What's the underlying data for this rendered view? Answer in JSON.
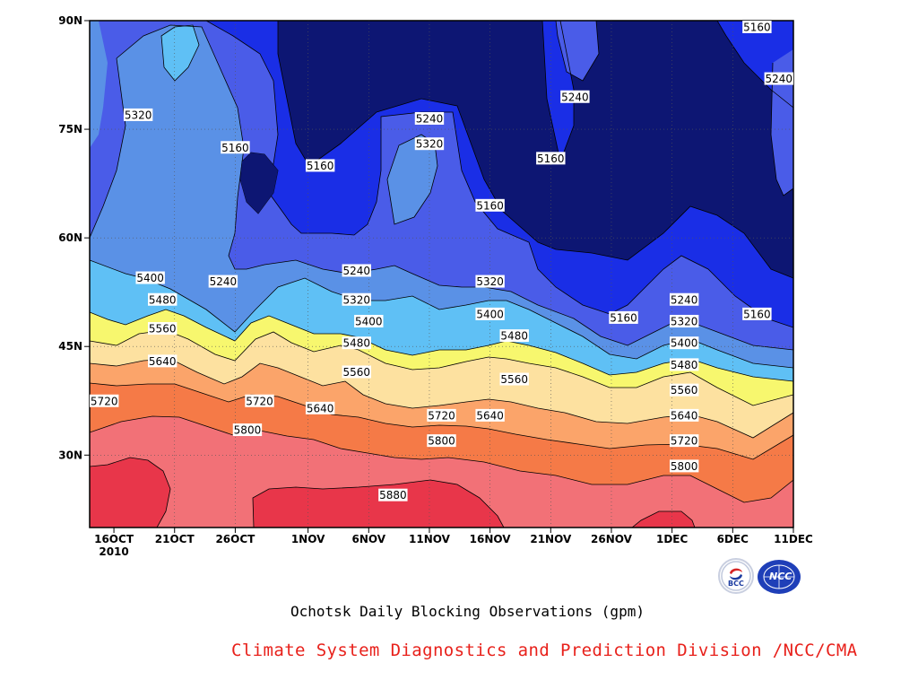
{
  "chart_data": {
    "type": "heatmap",
    "title": "Ochotsk Daily Blocking Observations (gpm)",
    "subtitle": "",
    "xlabel": "",
    "ylabel": "",
    "x_tick_labels": [
      "16OCT",
      "21OCT",
      "26OCT",
      "1NOV",
      "6NOV",
      "11NOV",
      "16NOV",
      "21NOV",
      "26NOV",
      "1DEC",
      "6DEC",
      "11DEC"
    ],
    "x_tick_year": "2010",
    "x_range": [
      "2010-10-14",
      "2010-12-11"
    ],
    "y_tick_labels": [
      "30N",
      "45N",
      "60N",
      "75N",
      "90N"
    ],
    "y_ticks": [
      30,
      45,
      60,
      75,
      90
    ],
    "ylim": [
      20,
      90
    ],
    "grid": true,
    "contour_levels": [
      5160,
      5240,
      5320,
      5400,
      5480,
      5560,
      5640,
      5720,
      5800,
      5880
    ],
    "level_colors": {
      "below_5160": "#0d1673",
      "5160_5240": "#1a2ee6",
      "5240_5320": "#4a5ce8",
      "5320_5400": "#5a91e6",
      "5400_5480": "#5fc0f5",
      "5480_5560": "#f7f76e",
      "5560_5640": "#fde1a0",
      "5640_5720": "#fba46a",
      "5720_5800": "#f57a47",
      "5800_5880": "#f27177",
      "above_5880": "#e8364a"
    },
    "contour_labels": [
      {
        "value": "5160",
        "date": "2010-12-08",
        "lat": 89.5
      },
      {
        "value": "5240",
        "date": "2010-12-11",
        "lat": 82
      },
      {
        "value": "5320",
        "date": "2010-10-18",
        "lat": 77
      },
      {
        "value": "5240",
        "date": "2010-11-11",
        "lat": 76.5
      },
      {
        "value": "5320",
        "date": "2010-11-11",
        "lat": 73
      },
      {
        "value": "5240",
        "date": "2010-11-23",
        "lat": 79.5
      },
      {
        "value": "5160",
        "date": "2010-10-26",
        "lat": 72.5
      },
      {
        "value": "5160",
        "date": "2010-11-02",
        "lat": 70
      },
      {
        "value": "5160",
        "date": "2010-11-21",
        "lat": 71
      },
      {
        "value": "5160",
        "date": "2010-11-16",
        "lat": 64.5
      },
      {
        "value": "5400",
        "date": "2010-10-19",
        "lat": 54.5
      },
      {
        "value": "5240",
        "date": "2010-10-25",
        "lat": 54
      },
      {
        "value": "5240",
        "date": "2010-11-05",
        "lat": 55.5
      },
      {
        "value": "5320",
        "date": "2010-11-16",
        "lat": 54
      },
      {
        "value": "5240",
        "date": "2010-12-02",
        "lat": 51.5
      },
      {
        "value": "5160",
        "date": "2010-12-08",
        "lat": 49.5
      },
      {
        "value": "5160",
        "date": "2010-11-27",
        "lat": 49
      },
      {
        "value": "5480",
        "date": "2010-10-20",
        "lat": 51.5
      },
      {
        "value": "5320",
        "date": "2010-11-05",
        "lat": 51.5
      },
      {
        "value": "5400",
        "date": "2010-11-16",
        "lat": 49.5
      },
      {
        "value": "5320",
        "date": "2010-12-02",
        "lat": 48.5
      },
      {
        "value": "5560",
        "date": "2010-10-20",
        "lat": 47.5
      },
      {
        "value": "5400",
        "date": "2010-11-06",
        "lat": 48.5
      },
      {
        "value": "5480",
        "date": "2010-11-18",
        "lat": 46.5
      },
      {
        "value": "5400",
        "date": "2010-12-02",
        "lat": 45.5
      },
      {
        "value": "5480",
        "date": "2010-11-05",
        "lat": 45.5
      },
      {
        "value": "5480",
        "date": "2010-12-02",
        "lat": 42.5
      },
      {
        "value": "5640",
        "date": "2010-10-20",
        "lat": 43
      },
      {
        "value": "5560",
        "date": "2010-11-05",
        "lat": 41.5
      },
      {
        "value": "5560",
        "date": "2010-11-18",
        "lat": 40.5
      },
      {
        "value": "5560",
        "date": "2010-12-02",
        "lat": 39
      },
      {
        "value": "5720",
        "date": "2010-10-13",
        "lat": 37.5
      },
      {
        "value": "5720",
        "date": "2010-10-28",
        "lat": 37.5
      },
      {
        "value": "5640",
        "date": "2010-11-02",
        "lat": 36.5
      },
      {
        "value": "5640",
        "date": "2010-12-02",
        "lat": 35.5
      },
      {
        "value": "5720",
        "date": "2010-11-12",
        "lat": 35.5
      },
      {
        "value": "5640",
        "date": "2010-11-16",
        "lat": 35.5
      },
      {
        "value": "5800",
        "date": "2010-10-27",
        "lat": 33.5
      },
      {
        "value": "5800",
        "date": "2010-11-12",
        "lat": 32
      },
      {
        "value": "5720",
        "date": "2010-12-02",
        "lat": 32
      },
      {
        "value": "5800",
        "date": "2010-12-02",
        "lat": 28.5
      },
      {
        "value": "5880",
        "date": "2010-11-08",
        "lat": 24.5
      }
    ]
  },
  "footer": {
    "title": "Ochotsk Daily Blocking Observations (gpm)",
    "credit": "Climate System Diagnostics and Prediction Division /NCC/CMA"
  },
  "logos": {
    "bcc": {
      "text": "BCC",
      "color": "#1b3ba0",
      "accent": "#d62424"
    },
    "ncc": {
      "text": "NCC",
      "color": "#1f3fb8"
    }
  }
}
